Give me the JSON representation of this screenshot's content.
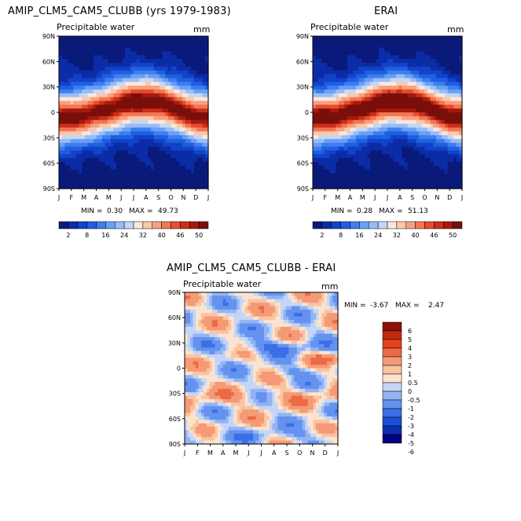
{
  "chart_data": [
    {
      "type": "heatmap",
      "title": "AMIP_CLM5_CAM5_CLUBB (yrs 1979-1983)",
      "subtitle": "Precipitable water",
      "units": "mm",
      "x_ticks": [
        "J",
        "F",
        "M",
        "A",
        "M",
        "J",
        "J",
        "A",
        "S",
        "O",
        "N",
        "D",
        "J"
      ],
      "y_ticks": [
        "90N",
        "60N",
        "30N",
        "0",
        "30S",
        "60S",
        "90S"
      ],
      "min_label": "MIN =",
      "min_value": "0.30",
      "max_label": "MAX =",
      "max_value": "49.73",
      "colorbar_labels": [
        "2",
        "8",
        "16",
        "24",
        "32",
        "40",
        "46",
        "50"
      ],
      "colorbar_levels": [
        2,
        5,
        8,
        12,
        16,
        20,
        24,
        28,
        32,
        36,
        40,
        44,
        46,
        48,
        50
      ],
      "peak_lat_by_month": [
        -6,
        -5,
        -3,
        0,
        4,
        8,
        11,
        12,
        10,
        6,
        1,
        -4,
        -6
      ],
      "peak_value": 49.73
    },
    {
      "type": "heatmap",
      "title": "ERAI",
      "subtitle": "Precipitable water",
      "units": "mm",
      "x_ticks": [
        "J",
        "F",
        "M",
        "A",
        "M",
        "J",
        "J",
        "A",
        "S",
        "O",
        "N",
        "D",
        "J"
      ],
      "y_ticks": [
        "90N",
        "60N",
        "30N",
        "0",
        "30S",
        "60S",
        "90S"
      ],
      "min_label": "MIN =",
      "min_value": "0.28",
      "max_label": "MAX =",
      "max_value": "51.13",
      "colorbar_labels": [
        "2",
        "8",
        "16",
        "24",
        "32",
        "40",
        "46",
        "50"
      ],
      "colorbar_levels": [
        2,
        5,
        8,
        12,
        16,
        20,
        24,
        28,
        32,
        36,
        40,
        44,
        46,
        48,
        50
      ],
      "peak_lat_by_month": [
        -6,
        -5,
        -3,
        0,
        4,
        8,
        11,
        12,
        10,
        6,
        1,
        -4,
        -6
      ],
      "peak_value": 51.13
    },
    {
      "type": "heatmap",
      "title": "AMIP_CLM5_CAM5_CLUBB - ERAI",
      "subtitle": "Precipitable water",
      "units": "mm",
      "x_ticks": [
        "J",
        "F",
        "M",
        "A",
        "M",
        "J",
        "J",
        "A",
        "S",
        "O",
        "N",
        "D",
        "J"
      ],
      "y_ticks": [
        "90N",
        "60N",
        "30N",
        "0",
        "30S",
        "60S",
        "90S"
      ],
      "min_label": "MIN =",
      "min_value": "-3.67",
      "max_label": "MAX =",
      "max_value": "2.47",
      "colorbar_labels": [
        "6",
        "5",
        "4",
        "3",
        "2",
        "1",
        "0.5",
        "0",
        "-0.5",
        "-1",
        "-2",
        "-3",
        "-4",
        "-5",
        "-6"
      ],
      "colorbar_levels": [
        -6,
        -5,
        -4,
        -3,
        -2,
        -1,
        -0.5,
        0,
        0.5,
        1,
        2,
        3,
        4,
        5,
        6
      ]
    }
  ],
  "colors": {
    "abs_palette": [
      "#0a1a7a",
      "#0b2ca6",
      "#1242c8",
      "#1f5fe0",
      "#3d7ef0",
      "#6a9ff5",
      "#97bdf7",
      "#c3d8f8",
      "#fde7d8",
      "#fbc8aa",
      "#f7a07e",
      "#f27654",
      "#e74c2c",
      "#cd2d16",
      "#a61a0d",
      "#7a0f0a"
    ],
    "diff_palette": [
      "#000080",
      "#0b2fb0",
      "#1a4fd6",
      "#3a6fe6",
      "#6592ef",
      "#93b4f4",
      "#c4d6f7",
      "#fbe3cf",
      "#fbc3a1",
      "#f49a76",
      "#ec6a45",
      "#e2421f",
      "#c22a10",
      "#8d1208"
    ]
  }
}
